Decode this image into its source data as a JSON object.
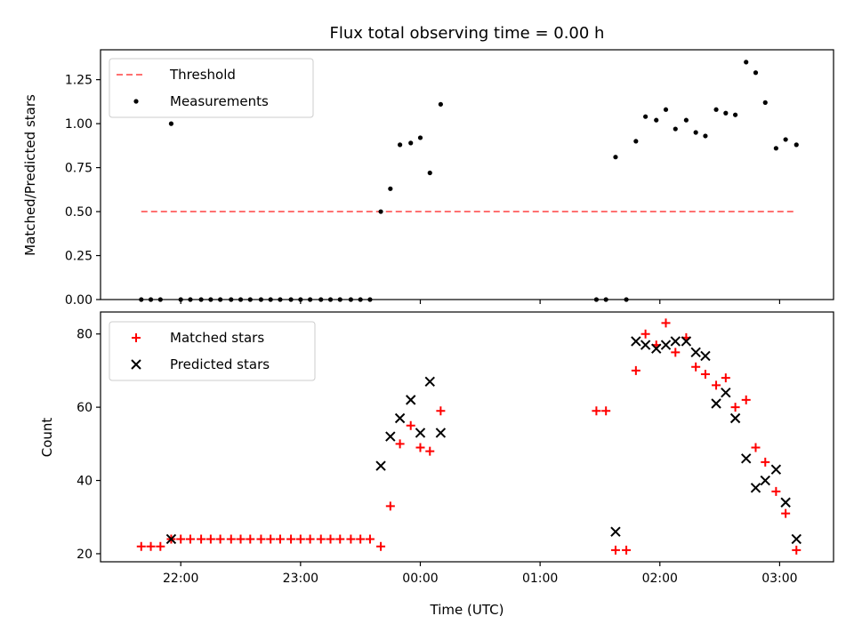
{
  "chart_data": {
    "type": "scatter",
    "title": "Flux total observing time = 0.00 h",
    "xlabel": "Time (UTC)",
    "x_tick_labels": [
      "22:00",
      "23:00",
      "00:00",
      "01:00",
      "02:00",
      "03:00"
    ],
    "x_ticks_hours": [
      22,
      23,
      24,
      25,
      26,
      27
    ],
    "xlim_hours": [
      21.33,
      27.45
    ],
    "panels": [
      {
        "name": "ratio",
        "ylabel": "Matched/Predicted stars",
        "ylim": [
          0,
          1.42
        ],
        "y_ticks": [
          "0.00",
          "0.25",
          "0.50",
          "0.75",
          "1.00",
          "1.25"
        ],
        "legend_position": "upper-left",
        "series": [
          {
            "name": "Threshold",
            "style": "dashed-line",
            "color": "#ff7070",
            "points": [
              [
                21.67,
                0.5
              ],
              [
                27.14,
                0.5
              ]
            ]
          },
          {
            "name": "Measurements",
            "style": "dot",
            "color": "#000000",
            "points": [
              [
                21.67,
                0
              ],
              [
                21.75,
                0
              ],
              [
                21.83,
                0
              ],
              [
                21.92,
                1.0
              ],
              [
                22.0,
                0
              ],
              [
                22.08,
                0
              ],
              [
                22.17,
                0
              ],
              [
                22.25,
                0
              ],
              [
                22.33,
                0
              ],
              [
                22.42,
                0
              ],
              [
                22.5,
                0
              ],
              [
                22.58,
                0
              ],
              [
                22.67,
                0
              ],
              [
                22.75,
                0
              ],
              [
                22.83,
                0
              ],
              [
                22.92,
                0
              ],
              [
                23.0,
                0
              ],
              [
                23.08,
                0
              ],
              [
                23.17,
                0
              ],
              [
                23.25,
                0
              ],
              [
                23.33,
                0
              ],
              [
                23.42,
                0
              ],
              [
                23.5,
                0
              ],
              [
                23.58,
                0
              ],
              [
                23.67,
                0.5
              ],
              [
                23.75,
                0.63
              ],
              [
                23.83,
                0.88
              ],
              [
                23.92,
                0.89
              ],
              [
                24.0,
                0.92
              ],
              [
                24.08,
                0.72
              ],
              [
                24.17,
                1.11
              ],
              [
                25.47,
                0
              ],
              [
                25.55,
                0
              ],
              [
                25.63,
                0.81
              ],
              [
                25.72,
                0
              ],
              [
                25.8,
                0.9
              ],
              [
                25.88,
                1.04
              ],
              [
                25.97,
                1.02
              ],
              [
                26.05,
                1.08
              ],
              [
                26.13,
                0.97
              ],
              [
                26.22,
                1.02
              ],
              [
                26.3,
                0.95
              ],
              [
                26.38,
                0.93
              ],
              [
                26.47,
                1.08
              ],
              [
                26.55,
                1.06
              ],
              [
                26.63,
                1.05
              ],
              [
                26.72,
                1.35
              ],
              [
                26.8,
                1.29
              ],
              [
                26.88,
                1.12
              ],
              [
                26.97,
                0.86
              ],
              [
                27.05,
                0.91
              ],
              [
                27.14,
                0.88
              ]
            ]
          }
        ]
      },
      {
        "name": "counts",
        "ylabel": "Count",
        "ylim": [
          17.8,
          86
        ],
        "y_ticks": [
          "20",
          "40",
          "60",
          "80"
        ],
        "legend_position": "upper-left",
        "series": [
          {
            "name": "Matched stars",
            "style": "plus",
            "color": "#ff0000",
            "points": [
              [
                21.67,
                22
              ],
              [
                21.75,
                22
              ],
              [
                21.83,
                22
              ],
              [
                21.92,
                24
              ],
              [
                22.0,
                24
              ],
              [
                22.08,
                24
              ],
              [
                22.17,
                24
              ],
              [
                22.25,
                24
              ],
              [
                22.33,
                24
              ],
              [
                22.42,
                24
              ],
              [
                22.5,
                24
              ],
              [
                22.58,
                24
              ],
              [
                22.67,
                24
              ],
              [
                22.75,
                24
              ],
              [
                22.83,
                24
              ],
              [
                22.92,
                24
              ],
              [
                23.0,
                24
              ],
              [
                23.08,
                24
              ],
              [
                23.17,
                24
              ],
              [
                23.25,
                24
              ],
              [
                23.33,
                24
              ],
              [
                23.42,
                24
              ],
              [
                23.5,
                24
              ],
              [
                23.58,
                24
              ],
              [
                23.67,
                22
              ],
              [
                23.75,
                33
              ],
              [
                23.83,
                50
              ],
              [
                23.92,
                55
              ],
              [
                24.0,
                49
              ],
              [
                24.08,
                48
              ],
              [
                24.17,
                59
              ],
              [
                25.47,
                59
              ],
              [
                25.55,
                59
              ],
              [
                25.63,
                21
              ],
              [
                25.72,
                21
              ],
              [
                25.8,
                70
              ],
              [
                25.88,
                80
              ],
              [
                25.97,
                77
              ],
              [
                26.05,
                83
              ],
              [
                26.13,
                75
              ],
              [
                26.22,
                79
              ],
              [
                26.3,
                71
              ],
              [
                26.38,
                69
              ],
              [
                26.47,
                66
              ],
              [
                26.55,
                68
              ],
              [
                26.63,
                60
              ],
              [
                26.72,
                62
              ],
              [
                26.8,
                49
              ],
              [
                26.88,
                45
              ],
              [
                26.97,
                37
              ],
              [
                27.05,
                31
              ],
              [
                27.14,
                21
              ]
            ]
          },
          {
            "name": "Predicted stars",
            "style": "x",
            "color": "#000000",
            "points": [
              [
                21.92,
                24
              ],
              [
                23.67,
                44
              ],
              [
                23.75,
                52
              ],
              [
                23.83,
                57
              ],
              [
                23.92,
                62
              ],
              [
                24.0,
                53
              ],
              [
                24.08,
                67
              ],
              [
                24.17,
                53
              ],
              [
                25.63,
                26
              ],
              [
                25.8,
                78
              ],
              [
                25.88,
                77
              ],
              [
                25.97,
                76
              ],
              [
                26.05,
                77
              ],
              [
                26.13,
                78
              ],
              [
                26.22,
                78
              ],
              [
                26.3,
                75
              ],
              [
                26.38,
                74
              ],
              [
                26.47,
                61
              ],
              [
                26.55,
                64
              ],
              [
                26.63,
                57
              ],
              [
                26.72,
                46
              ],
              [
                26.8,
                38
              ],
              [
                26.88,
                40
              ],
              [
                26.97,
                43
              ],
              [
                27.05,
                34
              ],
              [
                27.14,
                24
              ]
            ]
          }
        ]
      }
    ]
  }
}
